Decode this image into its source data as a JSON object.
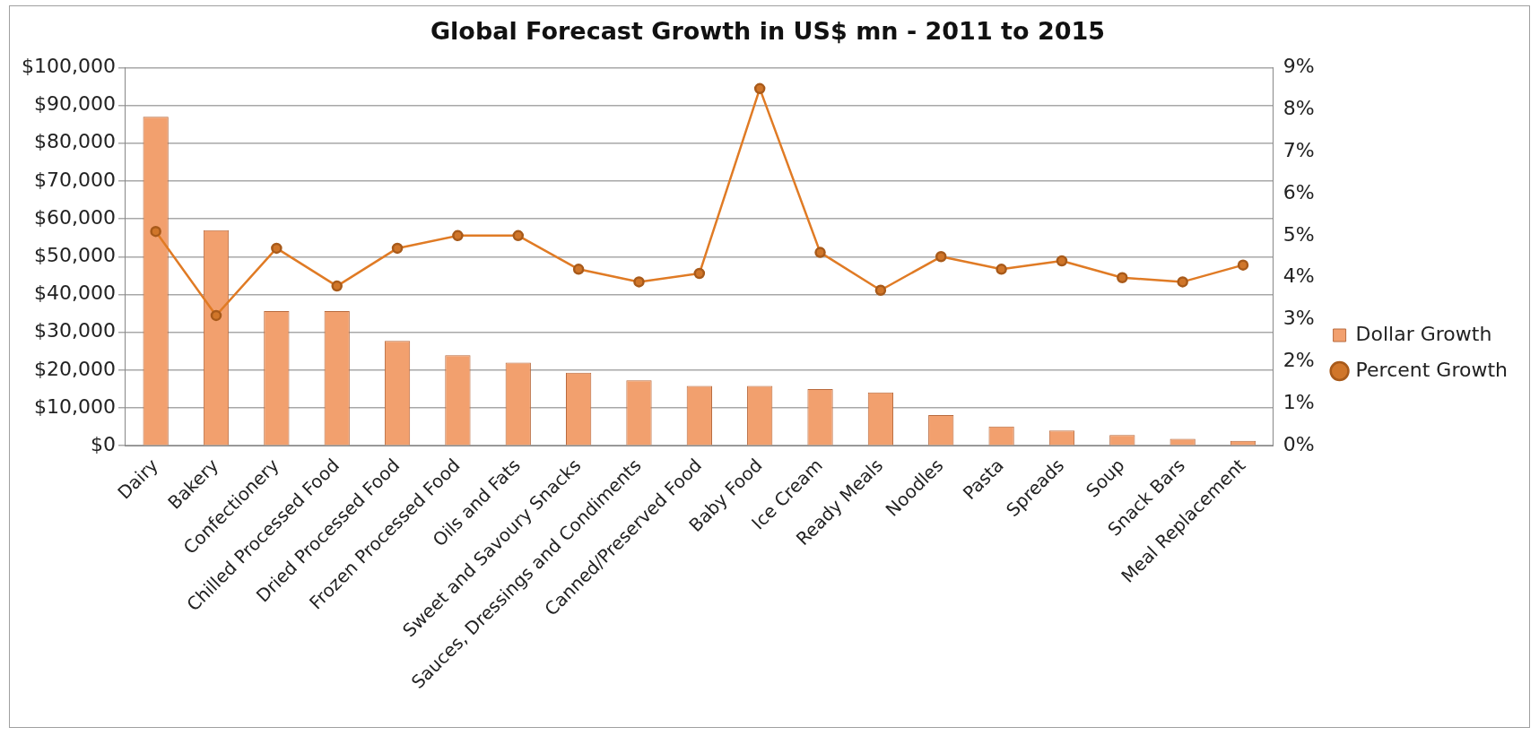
{
  "chart_data": {
    "type": "bar",
    "title": "Global Forecast Growth in US$ mn - 2011 to 2015",
    "categories": [
      "Dairy",
      "Bakery",
      "Confectionery",
      "Chilled Processed Food",
      "Dried Processed Food",
      "Frozen Processed Food",
      "Oils and Fats",
      "Sweet and Savoury Snacks",
      "Sauces, Dressings and Condiments",
      "Canned/Preserved Food",
      "Baby Food",
      "Ice Cream",
      "Ready Meals",
      "Noodles",
      "Pasta",
      "Spreads",
      "Soup",
      "Snack Bars",
      "Meal Replacement"
    ],
    "series": [
      {
        "name": "Dollar Growth",
        "color": "#f2a06e",
        "values": [
          87000,
          57000,
          35600,
          35600,
          27700,
          23900,
          22000,
          19300,
          17300,
          15800,
          15800,
          15000,
          14100,
          8100,
          5100,
          4000,
          2800,
          1800,
          1300
        ]
      },
      {
        "name": "Percent Growth",
        "type": "line",
        "axis": "y2",
        "color": "#e07b25",
        "values": [
          5.1,
          3.1,
          4.7,
          3.8,
          4.7,
          5.0,
          5.0,
          4.2,
          3.9,
          4.1,
          8.5,
          4.6,
          3.7,
          4.5,
          4.2,
          4.4,
          4.0,
          3.9,
          4.3
        ]
      }
    ],
    "ylim": [
      0,
      100000
    ],
    "yticks": [
      {
        "value": 0,
        "label": "$0"
      },
      {
        "value": 10000,
        "label": "$10,000"
      },
      {
        "value": 20000,
        "label": "$20,000"
      },
      {
        "value": 30000,
        "label": "$30,000"
      },
      {
        "value": 40000,
        "label": "$40,000"
      },
      {
        "value": 50000,
        "label": "$50,000"
      },
      {
        "value": 60000,
        "label": "$60,000"
      },
      {
        "value": 70000,
        "label": "$70,000"
      },
      {
        "value": 80000,
        "label": "$80,000"
      },
      {
        "value": 90000,
        "label": "$90,000"
      },
      {
        "value": 100000,
        "label": "$100,000"
      }
    ],
    "y2lim": [
      0,
      9
    ],
    "y2ticks": [
      {
        "value": 0,
        "label": "0%"
      },
      {
        "value": 1,
        "label": "1%"
      },
      {
        "value": 2,
        "label": "2%"
      },
      {
        "value": 3,
        "label": "3%"
      },
      {
        "value": 4,
        "label": "4%"
      },
      {
        "value": 5,
        "label": "5%"
      },
      {
        "value": 6,
        "label": "6%"
      },
      {
        "value": 7,
        "label": "7%"
      },
      {
        "value": 8,
        "label": "8%"
      },
      {
        "value": 9,
        "label": "9%"
      }
    ],
    "grid": "y",
    "legend": "right",
    "marker": "circle",
    "line_style": "solid"
  }
}
